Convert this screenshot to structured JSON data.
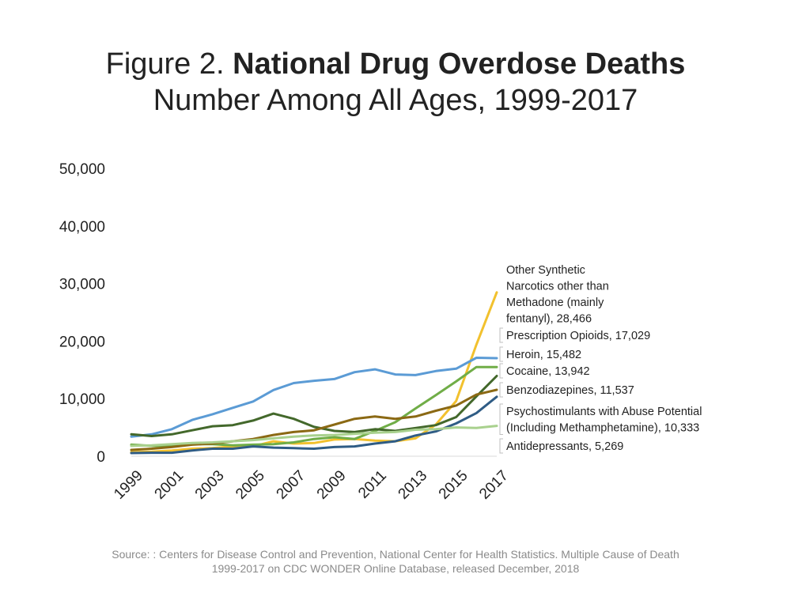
{
  "title": {
    "prefix": "Figure 2.",
    "bold": "National Drug Overdose Deaths",
    "subtitle": "Number Among All Ages, 1999-2017"
  },
  "source": {
    "line1": "Source: : Centers for Disease Control and Prevention, National Center for Health Statistics. Multiple Cause of Death",
    "line2": "1999-2017 on CDC WONDER Online Database, released December, 2018"
  },
  "chart_data": {
    "type": "line",
    "x": [
      1999,
      2000,
      2001,
      2002,
      2003,
      2004,
      2005,
      2006,
      2007,
      2008,
      2009,
      2010,
      2011,
      2012,
      2013,
      2014,
      2015,
      2016,
      2017
    ],
    "x_tick_labels": [
      "1999",
      "2001",
      "2003",
      "2005",
      "2007",
      "2009",
      "2011",
      "2013",
      "2015",
      "2017"
    ],
    "y_tick_labels": [
      "0",
      "10,000",
      "20,000",
      "30,000",
      "40,000",
      "50,000"
    ],
    "ylim": [
      0,
      50000
    ],
    "grid": false,
    "legend": "direct labels at line ends (right)",
    "series": [
      {
        "name": "Other Synthetic Narcotics other than Methadone (mainly fentanyl), 28,466",
        "label_lines": [
          "Other Synthetic",
          "Narcotics other than",
          "Methadone (mainly",
          "fentanyl), 28,466"
        ],
        "color": "#F2C12E",
        "values": [
          700,
          800,
          1000,
          1300,
          1400,
          1700,
          1700,
          2600,
          2200,
          2300,
          2900,
          3000,
          2700,
          2600,
          3100,
          5500,
          9600,
          19400,
          28466
        ]
      },
      {
        "name": "Prescription Opioids, 17,029",
        "label_lines": [
          "Prescription Opioids, 17,029"
        ],
        "color": "#5B9BD5",
        "values": [
          3400,
          3800,
          4700,
          6300,
          7300,
          8400,
          9500,
          11500,
          12700,
          13100,
          13400,
          14600,
          15100,
          14200,
          14100,
          14800,
          15200,
          17100,
          17029
        ]
      },
      {
        "name": "Heroin, 15,482",
        "label_lines": [
          "Heroin, 15,482"
        ],
        "color": "#70AD47",
        "values": [
          2000,
          1800,
          1800,
          2100,
          2100,
          1900,
          2000,
          2100,
          2400,
          3000,
          3300,
          3000,
          4400,
          5900,
          8300,
          10600,
          13000,
          15500,
          15482
        ]
      },
      {
        "name": "Cocaine, 13,942",
        "label_lines": [
          "Cocaine, 13,942"
        ],
        "color": "#43682B",
        "values": [
          3800,
          3500,
          3800,
          4500,
          5200,
          5400,
          6200,
          7400,
          6500,
          5100,
          4400,
          4200,
          4700,
          4400,
          4900,
          5400,
          6800,
          10400,
          13942
        ]
      },
      {
        "name": "Benzodiazepines, 11,537",
        "label_lines": [
          "Benzodiazepines, 11,537"
        ],
        "color": "#8B6914",
        "values": [
          1100,
          1300,
          1600,
          2000,
          2200,
          2600,
          3000,
          3700,
          4200,
          4500,
          5500,
          6500,
          6900,
          6500,
          6900,
          7900,
          8800,
          10700,
          11537
        ]
      },
      {
        "name": "Psychostimulants with Abuse Potential (Including Methamphetamine), 10,333",
        "label_lines": [
          "Psychostimulants with Abuse Potential",
          "(Including Methamphetamine), 10,333"
        ],
        "color": "#2F5C85",
        "values": [
          550,
          600,
          600,
          1000,
          1300,
          1300,
          1700,
          1500,
          1400,
          1300,
          1600,
          1700,
          2200,
          2600,
          3600,
          4300,
          5700,
          7500,
          10333
        ]
      },
      {
        "name": "Antidepressants, 5,269",
        "label_lines": [
          "Antidepressants, 5,269"
        ],
        "color": "#A9D18E",
        "values": [
          1800,
          1900,
          2100,
          2300,
          2400,
          2600,
          2800,
          3100,
          3400,
          3600,
          3700,
          3900,
          4100,
          4200,
          4600,
          4700,
          5000,
          4900,
          5269
        ]
      }
    ]
  }
}
